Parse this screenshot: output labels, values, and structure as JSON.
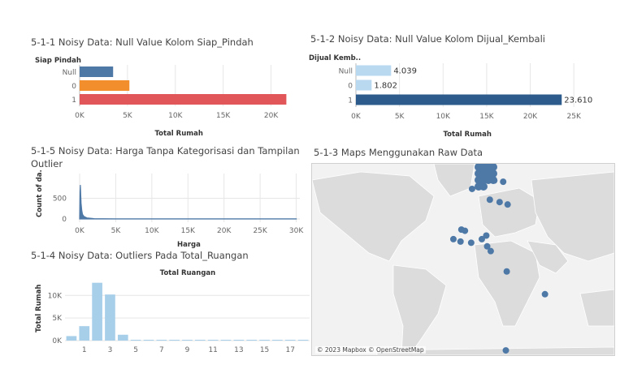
{
  "panels": {
    "p1": {
      "title": "5-1-1 Noisy Data: Null Value Kolom Siap_Pindah",
      "row_header": "Siap Pindah",
      "xlabel": "Total Rumah"
    },
    "p2": {
      "title": "5-1-2 Noisy Data: Null Value Kolom Dijual_Kembali",
      "row_header": "Dijual Kemb..",
      "xlabel": "Total Rumah"
    },
    "p5": {
      "title_line1": "5-1-5 Noisy Data: Harga Tanpa Kategorisasi dan Tampilan",
      "title_line2": "Outlier",
      "ylabel": "Count of da..",
      "xlabel": "Harga"
    },
    "p4": {
      "title": "5-1-4 Noisy Data: Outliers Pada Total_Ruangan",
      "chart_title": "Total Ruangan",
      "ylabel": "Total Rumah"
    },
    "p3": {
      "title": "5-1-3 Maps Menggunakan Raw Data",
      "credit": "© 2023 Mapbox © OpenStreetMap"
    }
  },
  "chart_data": [
    {
      "type": "bar",
      "title": "5-1-1 Noisy Data: Null Value Kolom Siap_Pindah",
      "categories": [
        "Null",
        "0",
        "1"
      ],
      "values": [
        3500,
        5200,
        21600
      ],
      "colors": [
        "#4e79a7",
        "#f28e2b",
        "#e15759"
      ],
      "xlabel": "Total Rumah",
      "xlim": [
        0,
        22500
      ],
      "xticks": [
        0,
        5000,
        10000,
        15000,
        20000
      ],
      "xtick_labels": [
        "0K",
        "5K",
        "10K",
        "15K",
        "20K"
      ]
    },
    {
      "type": "bar",
      "title": "5-1-2 Noisy Data: Null Value Kolom Dijual_Kembali",
      "categories": [
        "Null",
        "0",
        "1"
      ],
      "values": [
        4039,
        1802,
        23610
      ],
      "value_labels": [
        "4.039",
        "1.802",
        "23.610"
      ],
      "colors": [
        "#b9d9f0",
        "#b9d9f0",
        "#2d5b8c"
      ],
      "xlabel": "Total Rumah",
      "xlim": [
        0,
        27500
      ],
      "xticks": [
        0,
        5000,
        10000,
        15000,
        20000,
        25000
      ],
      "xtick_labels": [
        "0K",
        "5K",
        "10K",
        "15K",
        "20K",
        "25K"
      ]
    },
    {
      "type": "area",
      "title": "5-1-5 Noisy Data: Harga Tanpa Kategorisasi dan Tampilan Outlier",
      "x": [
        0,
        50,
        100,
        150,
        200,
        300,
        400,
        600,
        1000,
        2000,
        5000,
        10000,
        20000,
        30000
      ],
      "y": [
        0,
        650,
        820,
        600,
        380,
        200,
        110,
        60,
        25,
        8,
        3,
        2,
        2,
        2
      ],
      "xlabel": "Harga",
      "ylabel": "Count of da..",
      "xlim": [
        0,
        30500
      ],
      "ylim": [
        -60,
        900
      ],
      "xticks": [
        0,
        5000,
        10000,
        15000,
        20000,
        25000,
        30000
      ],
      "xtick_labels": [
        "0K",
        "5K",
        "10K",
        "15K",
        "20K",
        "25K",
        "30K"
      ],
      "yticks": [
        0,
        500
      ],
      "ytick_labels": [
        "0",
        "500"
      ]
    },
    {
      "type": "bar",
      "title": "Total Ruangan",
      "categories": [
        0,
        1,
        2,
        3,
        4,
        5,
        6,
        7,
        8,
        9,
        10,
        11,
        12,
        13,
        14,
        15,
        16,
        17,
        18
      ],
      "values": [
        1000,
        3200,
        12800,
        10200,
        1300,
        20,
        10,
        5,
        5,
        3,
        3,
        3,
        3,
        2,
        2,
        2,
        2,
        2,
        2
      ],
      "ylabel": "Total Rumah",
      "ylim": [
        0,
        14000
      ],
      "yticks": [
        0,
        5000,
        10000
      ],
      "ytick_labels": [
        "0K",
        "5K",
        "10K"
      ],
      "xtick_labels": [
        "1",
        "3",
        "5",
        "7",
        "9",
        "11",
        "13",
        "15",
        "17"
      ],
      "xtick_values": [
        1,
        3,
        5,
        7,
        9,
        11,
        13,
        15,
        17
      ]
    }
  ],
  "map_points": [
    [
      60,
      55
    ],
    [
      61,
      45
    ],
    [
      61,
      30
    ],
    [
      54,
      20
    ],
    [
      45,
      40
    ],
    [
      43,
      51
    ],
    [
      41,
      60
    ],
    [
      12,
      -1
    ],
    [
      9,
      19
    ],
    [
      10,
      7
    ],
    [
      19,
      12
    ],
    [
      20,
      8
    ],
    [
      15,
      36
    ],
    [
      12,
      31
    ],
    [
      6,
      37
    ],
    [
      2,
      41
    ],
    [
      -15,
      59
    ],
    [
      -34,
      102
    ],
    [
      -81,
      58
    ]
  ],
  "colors": {
    "map_point": "#4e79a7",
    "land": "#dcdcdc",
    "water": "#f2f2f2",
    "border": "#ffffff"
  }
}
